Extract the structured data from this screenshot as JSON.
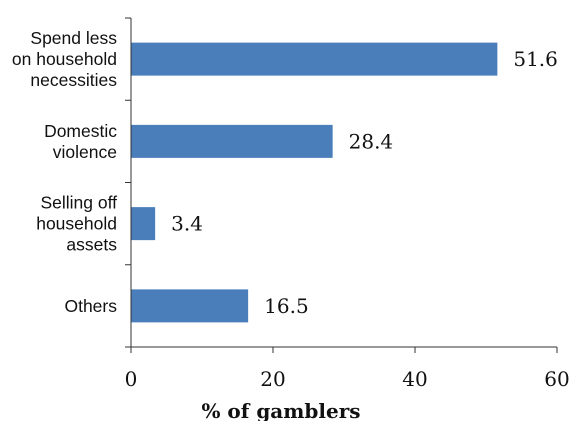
{
  "chart_data": {
    "type": "bar",
    "orientation": "horizontal",
    "categories": [
      "Spend less on household necessities",
      "Domestic violence",
      "Selling off household assets",
      "Others"
    ],
    "category_label_lines": [
      [
        "Spend less",
        "on household",
        "necessities"
      ],
      [
        "Domestic",
        "violence"
      ],
      [
        "Selling off",
        "household",
        "assets"
      ],
      [
        "Others"
      ]
    ],
    "values": [
      51.6,
      28.4,
      3.4,
      16.5
    ],
    "value_labels": [
      "51.6",
      "28.4",
      "3.4",
      "16.5"
    ],
    "xlabel": "% of gamblers",
    "xlim": [
      0,
      60
    ],
    "xticks": [
      "0",
      "20",
      "40",
      "60"
    ],
    "grid": false,
    "legend": "none",
    "bar_color": "#4a7ebb"
  }
}
